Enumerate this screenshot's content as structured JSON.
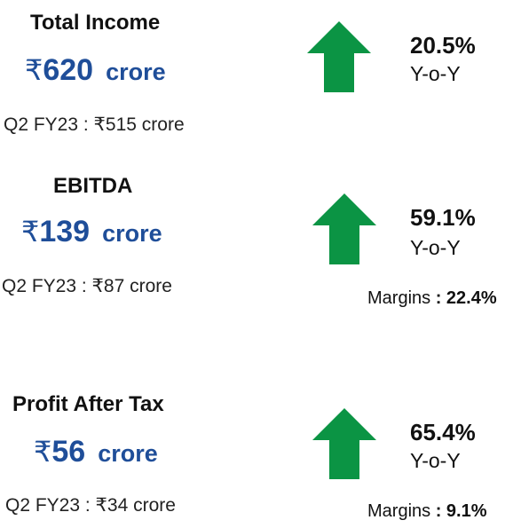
{
  "accent_color": "#1f4e99",
  "arrow_color": "#0b9444",
  "metrics": [
    {
      "title": "Total Income",
      "currency_symbol": "₹",
      "value": "620",
      "unit": "crore",
      "comparison": "Q2 FY23 : ₹515 crore",
      "trend_icon": "up-arrow-icon",
      "growth": "20.5%",
      "growth_label": "Y-o-Y",
      "margin_label": "",
      "margin_value": ""
    },
    {
      "title": "EBITDA",
      "currency_symbol": "₹",
      "value": "139",
      "unit": "crore",
      "comparison": "Q2 FY23 :  ₹87 crore",
      "trend_icon": "up-arrow-icon",
      "growth": "59.1%",
      "growth_label": "Y-o-Y",
      "margin_label": "Margins ",
      "margin_value": ": 22.4%"
    },
    {
      "title": "Profit After Tax",
      "currency_symbol": "₹",
      "value": "56",
      "unit": "crore",
      "comparison": "Q2 FY23 : ₹34 crore",
      "trend_icon": "up-arrow-icon",
      "growth": "65.4%",
      "growth_label": "Y-o-Y",
      "margin_label": "Margins ",
      "margin_value": ": 9.1%"
    }
  ]
}
